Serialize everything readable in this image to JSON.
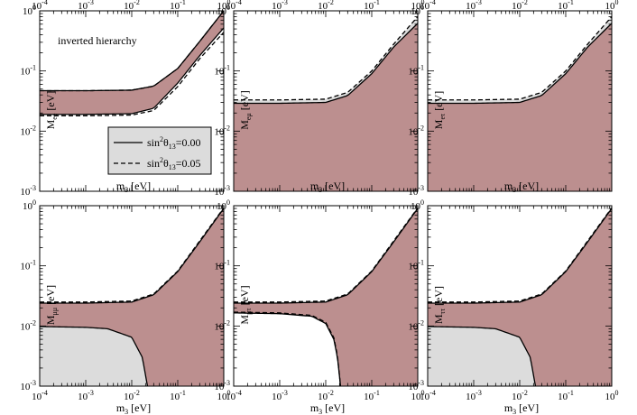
{
  "colors": {
    "allowed_band": "#bc8f8f",
    "grey_band": "#dcdcdc",
    "legend_bg": "#dcdcdc",
    "curves": "#000000"
  },
  "chart_data": {
    "type": "area",
    "layout": "2x3 grid",
    "x_scale": "log",
    "y_scale": "log",
    "xlim": [
      0.0001,
      1
    ],
    "ylim": [
      0.001,
      1
    ],
    "x_ticks": [
      "10^-4",
      "10^-3",
      "10^-2",
      "10^-1",
      "10^0"
    ],
    "y_ticks": [
      "10^-3",
      "10^-2",
      "10^-1",
      "10^0"
    ],
    "x_label": "m3 [eV]",
    "top_axis_ticks_labeled_on_first_row": true,
    "annotation": "inverted hierarchy",
    "legend": [
      {
        "label_main": "sin",
        "sup": "2",
        "theta": "θ",
        "sub": "13",
        "value": "=0.00",
        "style": "solid"
      },
      {
        "label_main": "sin",
        "sup": "2",
        "theta": "θ",
        "sub": "13",
        "value": "=0.05",
        "style": "dashed"
      }
    ],
    "panels": [
      {
        "ylabel_main": "M",
        "ylabel_sub": "ee",
        "ylabel_unit": " [eV]",
        "upper_solid": [
          [
            0.0001,
            0.047
          ],
          [
            0.001,
            0.047
          ],
          [
            0.01,
            0.048
          ],
          [
            0.03,
            0.056
          ],
          [
            0.1,
            0.11
          ],
          [
            0.3,
            0.31
          ],
          [
            1,
            1
          ]
        ],
        "lower_solid": [
          [
            0.0001,
            0.019
          ],
          [
            0.001,
            0.019
          ],
          [
            0.01,
            0.0195
          ],
          [
            0.03,
            0.024
          ],
          [
            0.1,
            0.063
          ],
          [
            0.3,
            0.18
          ],
          [
            1,
            0.52
          ]
        ],
        "upper_dashed": [
          [
            0.0001,
            0.047
          ],
          [
            0.001,
            0.047
          ],
          [
            0.01,
            0.048
          ],
          [
            0.03,
            0.056
          ],
          [
            0.1,
            0.11
          ],
          [
            0.3,
            0.31
          ],
          [
            1,
            1
          ]
        ],
        "lower_dashed": [
          [
            0.0001,
            0.018
          ],
          [
            0.001,
            0.018
          ],
          [
            0.01,
            0.0185
          ],
          [
            0.03,
            0.022
          ],
          [
            0.1,
            0.055
          ],
          [
            0.3,
            0.16
          ],
          [
            1,
            0.44
          ]
        ],
        "grey_region": "none",
        "fill_to_bottom": false,
        "white_bottom_region": false
      },
      {
        "ylabel_main": "M",
        "ylabel_sub": "eμ",
        "ylabel_unit": " [eV]",
        "upper_solid": [
          [
            0.0001,
            0.029
          ],
          [
            0.001,
            0.029
          ],
          [
            0.01,
            0.03
          ],
          [
            0.03,
            0.039
          ],
          [
            0.1,
            0.09
          ],
          [
            0.3,
            0.25
          ],
          [
            1,
            0.62
          ]
        ],
        "upper_dashed": [
          [
            0.0001,
            0.033
          ],
          [
            0.001,
            0.033
          ],
          [
            0.01,
            0.034
          ],
          [
            0.03,
            0.044
          ],
          [
            0.1,
            0.1
          ],
          [
            0.3,
            0.28
          ],
          [
            1,
            0.8
          ]
        ],
        "grey_region": "between_solid_and_dashed",
        "fill_to_bottom": true,
        "white_bottom_region": false
      },
      {
        "ylabel_main": "M",
        "ylabel_sub": "eτ",
        "ylabel_unit": " [eV]",
        "upper_solid": [
          [
            0.0001,
            0.029
          ],
          [
            0.001,
            0.029
          ],
          [
            0.01,
            0.03
          ],
          [
            0.03,
            0.039
          ],
          [
            0.1,
            0.09
          ],
          [
            0.3,
            0.25
          ],
          [
            1,
            0.62
          ]
        ],
        "upper_dashed": [
          [
            0.0001,
            0.033
          ],
          [
            0.001,
            0.033
          ],
          [
            0.01,
            0.034
          ],
          [
            0.03,
            0.044
          ],
          [
            0.1,
            0.1
          ],
          [
            0.3,
            0.28
          ],
          [
            1,
            0.8
          ]
        ],
        "grey_region": "between_solid_and_dashed",
        "fill_to_bottom": true,
        "white_bottom_region": false
      },
      {
        "ylabel_main": "M",
        "ylabel_sub": "μμ",
        "ylabel_unit": " [eV]",
        "upper_solid": [
          [
            0.0001,
            0.024
          ],
          [
            0.001,
            0.024
          ],
          [
            0.01,
            0.025
          ],
          [
            0.03,
            0.033
          ],
          [
            0.1,
            0.08
          ],
          [
            0.3,
            0.25
          ],
          [
            1,
            0.9
          ]
        ],
        "upper_dashed": [
          [
            0.0001,
            0.025
          ],
          [
            0.001,
            0.025
          ],
          [
            0.01,
            0.026
          ],
          [
            0.03,
            0.034
          ],
          [
            0.1,
            0.082
          ],
          [
            0.3,
            0.26
          ],
          [
            1,
            0.92
          ]
        ],
        "lower_solid": [
          [
            0.0001,
            0.0098
          ],
          [
            0.001,
            0.0095
          ],
          [
            0.003,
            0.009
          ],
          [
            0.01,
            0.0065
          ],
          [
            0.017,
            0.003
          ],
          [
            0.02,
            0.0015
          ],
          [
            0.022,
            0.001
          ]
        ],
        "grey_region": "below_lower",
        "fill_to_bottom": false,
        "white_bottom_region": false
      },
      {
        "ylabel_main": "M",
        "ylabel_sub": "μτ",
        "ylabel_unit": " [eV]",
        "upper_solid": [
          [
            0.0001,
            0.024
          ],
          [
            0.001,
            0.024
          ],
          [
            0.01,
            0.025
          ],
          [
            0.03,
            0.033
          ],
          [
            0.1,
            0.08
          ],
          [
            0.3,
            0.25
          ],
          [
            1,
            0.9
          ]
        ],
        "upper_dashed": [
          [
            0.0001,
            0.025
          ],
          [
            0.001,
            0.025
          ],
          [
            0.01,
            0.026
          ],
          [
            0.03,
            0.034
          ],
          [
            0.1,
            0.082
          ],
          [
            0.3,
            0.26
          ],
          [
            1,
            0.92
          ]
        ],
        "lower_solid": [
          [
            0.0001,
            0.0165
          ],
          [
            0.001,
            0.016
          ],
          [
            0.005,
            0.0145
          ],
          [
            0.01,
            0.011
          ],
          [
            0.015,
            0.006
          ],
          [
            0.018,
            0.003
          ],
          [
            0.021,
            0.001
          ]
        ],
        "lower_dashed": [
          [
            0.0001,
            0.017
          ],
          [
            0.001,
            0.0165
          ],
          [
            0.005,
            0.015
          ],
          [
            0.01,
            0.0115
          ],
          [
            0.015,
            0.0064
          ],
          [
            0.018,
            0.0032
          ],
          [
            0.021,
            0.001
          ]
        ],
        "grey_region": "none",
        "fill_to_bottom": false,
        "white_bottom_region": true
      },
      {
        "ylabel_main": "M",
        "ylabel_sub": "ττ",
        "ylabel_unit": " [eV]",
        "upper_solid": [
          [
            0.0001,
            0.024
          ],
          [
            0.001,
            0.024
          ],
          [
            0.01,
            0.025
          ],
          [
            0.03,
            0.033
          ],
          [
            0.1,
            0.08
          ],
          [
            0.3,
            0.25
          ],
          [
            1,
            0.9
          ]
        ],
        "upper_dashed": [
          [
            0.0001,
            0.025
          ],
          [
            0.001,
            0.025
          ],
          [
            0.01,
            0.026
          ],
          [
            0.03,
            0.034
          ],
          [
            0.1,
            0.082
          ],
          [
            0.3,
            0.26
          ],
          [
            1,
            0.92
          ]
        ],
        "lower_solid": [
          [
            0.0001,
            0.0098
          ],
          [
            0.001,
            0.0095
          ],
          [
            0.003,
            0.009
          ],
          [
            0.01,
            0.0065
          ],
          [
            0.017,
            0.003
          ],
          [
            0.02,
            0.0015
          ],
          [
            0.022,
            0.001
          ]
        ],
        "grey_region": "below_lower",
        "fill_to_bottom": false,
        "white_bottom_region": false
      }
    ]
  }
}
